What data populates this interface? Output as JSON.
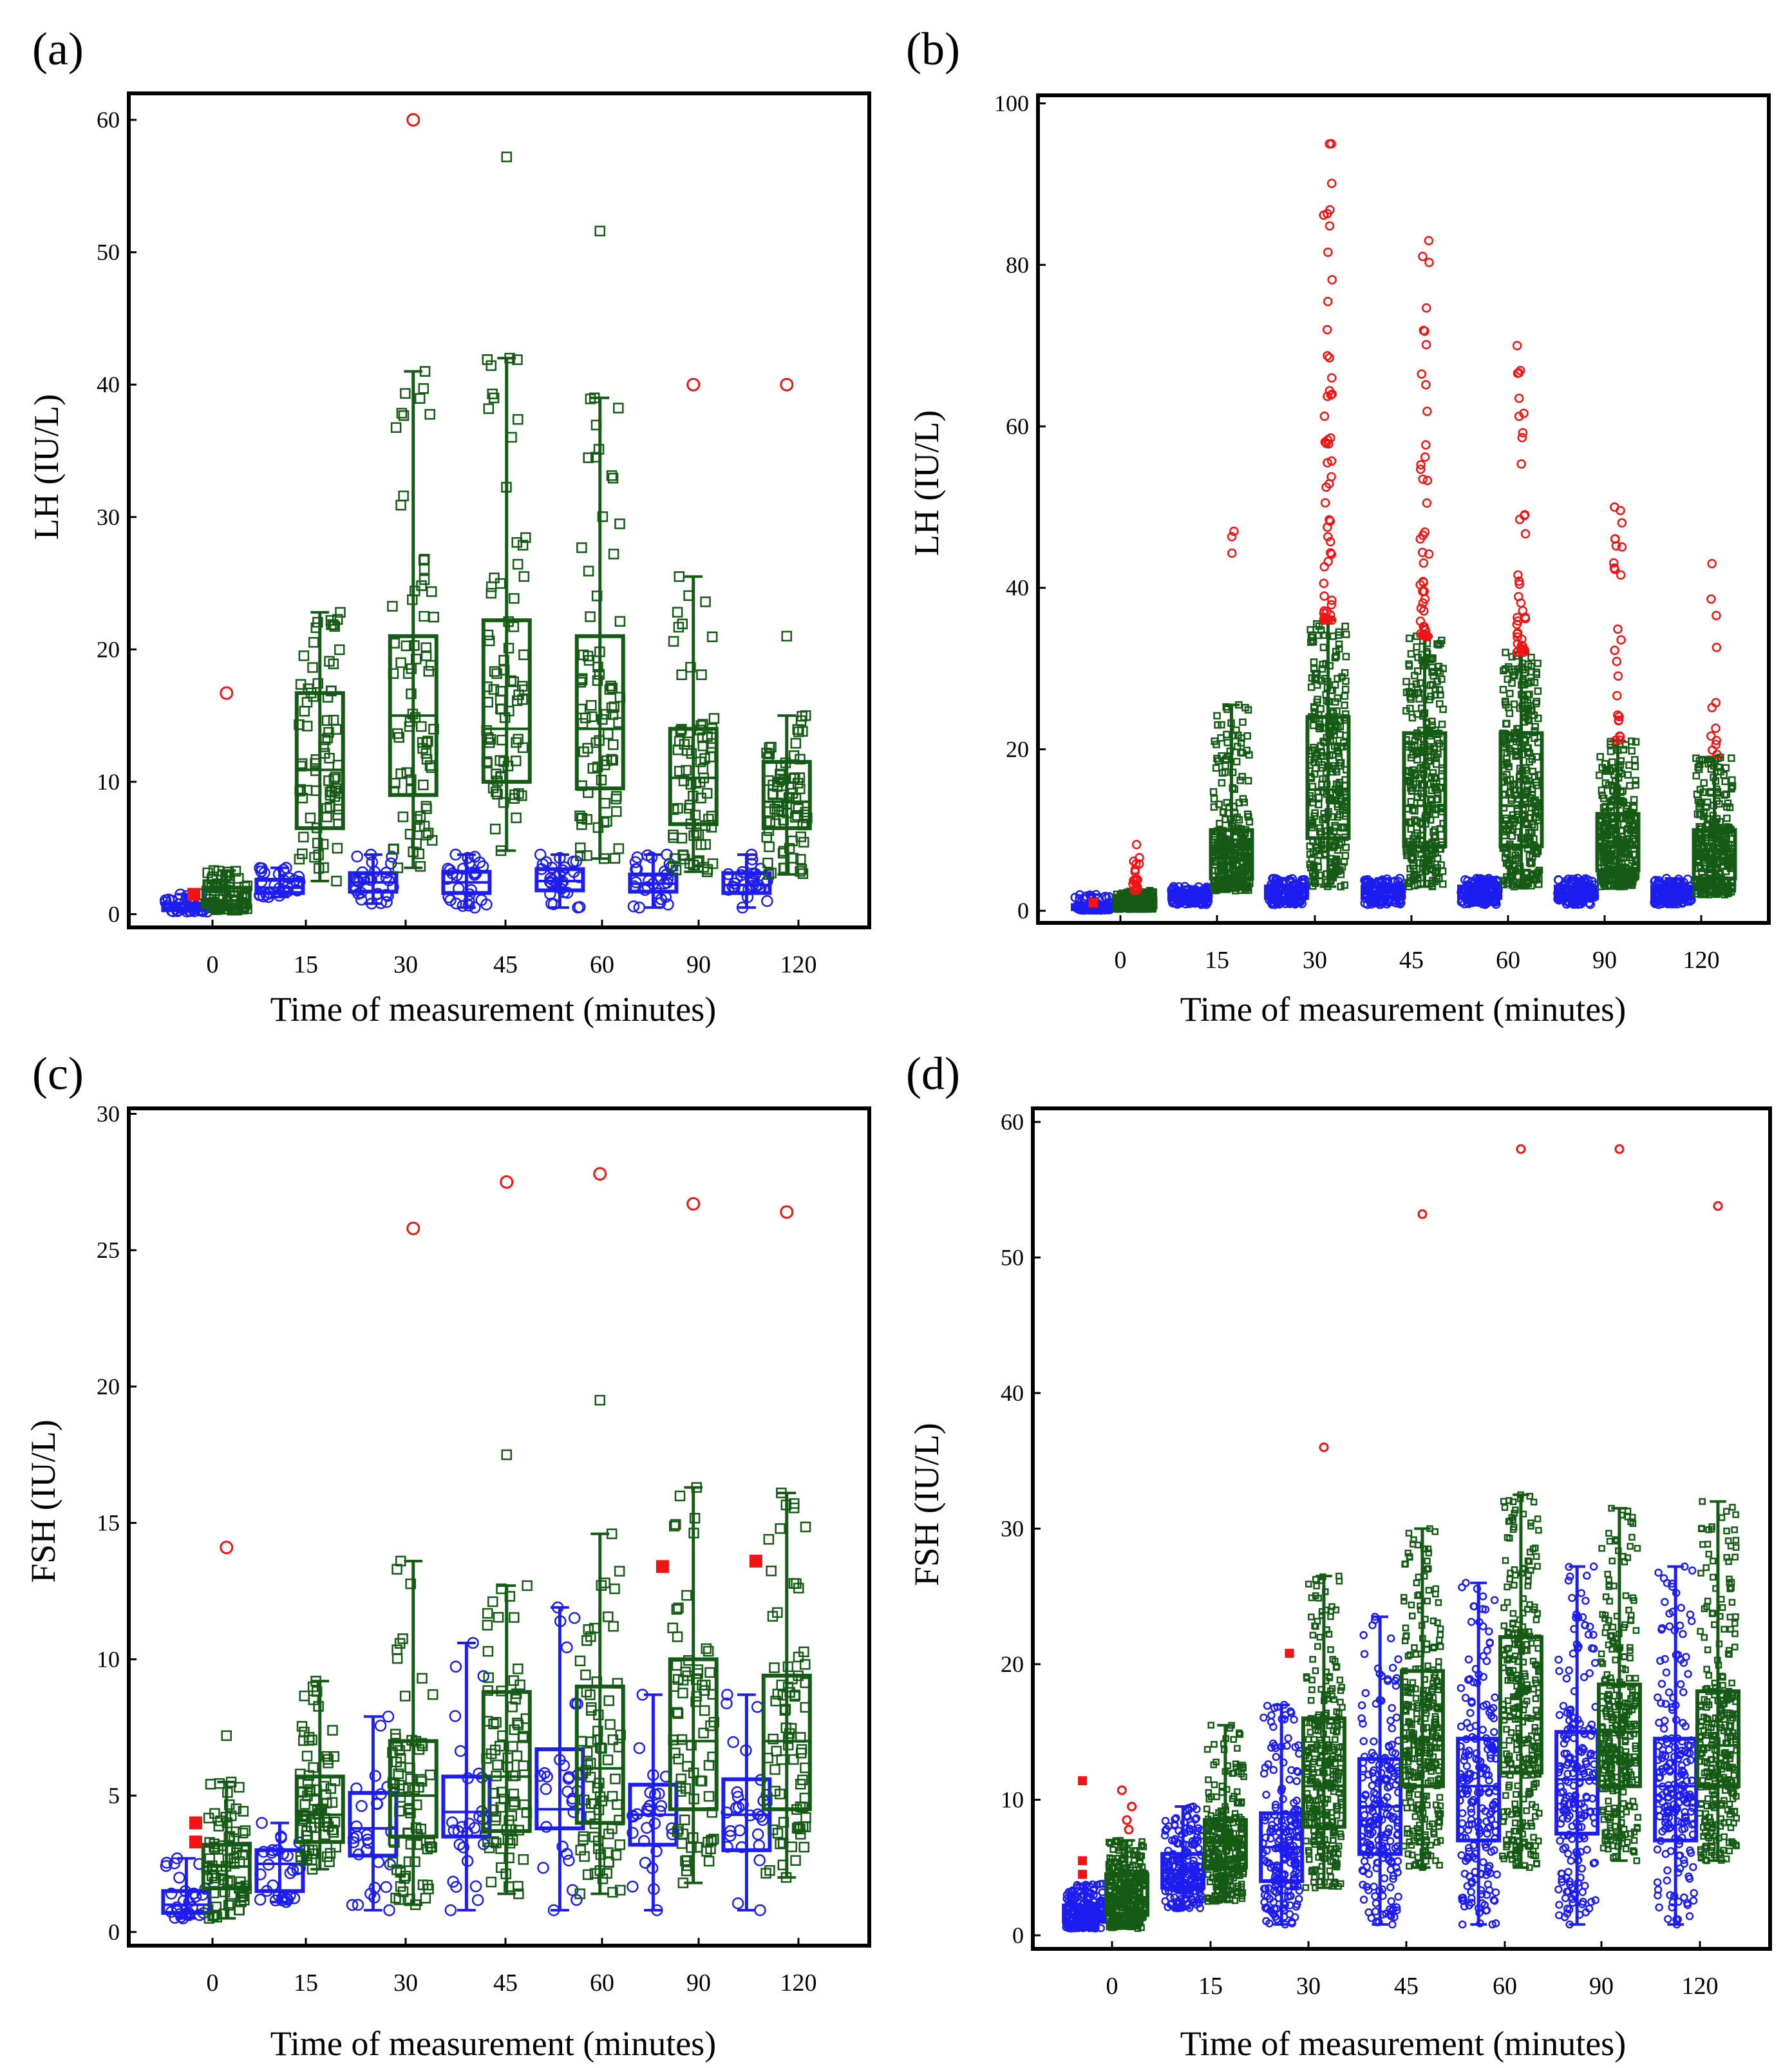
{
  "colors": {
    "blue": "#1d1df0",
    "green": "#155a15",
    "red": "#f01414",
    "frame": "#000000"
  },
  "chart_data": [
    {
      "type": "box-scatter",
      "panel_label": "(a)",
      "ylabel": "LH (IU/L)",
      "xlabel": "Time of measurement (minutes)",
      "categories": [
        "0",
        "15",
        "30",
        "45",
        "60",
        "90",
        "120"
      ],
      "ylim": [
        -1,
        62
      ],
      "yticks": [
        0,
        10,
        20,
        30,
        40,
        50,
        60
      ],
      "points_per_blue": 28,
      "points_per_green": 75,
      "series": [
        {
          "name": "group-blue",
          "color": "blue",
          "marker": "circle",
          "offset": -0.28,
          "box": [
            [
              0.2,
              0.3,
              0.5,
              0.8,
              1.5
            ],
            [
              1.3,
              1.6,
              2.0,
              2.6,
              3.5
            ],
            [
              0.8,
              1.7,
              2.4,
              3.1,
              4.5
            ],
            [
              0.5,
              1.6,
              2.4,
              3.2,
              4.5
            ],
            [
              0.5,
              1.8,
              2.5,
              3.4,
              4.5
            ],
            [
              0.5,
              1.7,
              2.3,
              3.0,
              4.5
            ],
            [
              0.5,
              1.6,
              2.2,
              3.1,
              4.5
            ]
          ]
        },
        {
          "name": "group-green",
          "color": "green",
          "marker": "square",
          "offset": 0.15,
          "box": [
            [
              0.3,
              0.5,
              1.0,
              2.0,
              3.3
            ],
            [
              2.5,
              6.5,
              10.9,
              16.7,
              22.8
            ],
            [
              3.5,
              9.0,
              15.0,
              21.0,
              41.0
            ],
            [
              4.8,
              10.0,
              14.0,
              22.2,
              42.0
            ],
            [
              4.2,
              9.5,
              14.0,
              21.0,
              39.0
            ],
            [
              3.2,
              6.8,
              10.3,
              14.0,
              25.5
            ],
            [
              3.0,
              6.5,
              8.5,
              11.5,
              15.0
            ]
          ],
          "extremes": [
            [],
            [],
            [],
            [
              57.2
            ],
            [
              51.6
            ],
            [],
            [
              21.0
            ]
          ]
        }
      ],
      "red_circles": [
        [
          0,
          16.7
        ],
        [
          2,
          60.0
        ],
        [
          5,
          40.0
        ],
        [
          6,
          40.0
        ]
      ],
      "red_squares": [
        [
          -0.2,
          1.5
        ]
      ]
    },
    {
      "type": "box-scatter",
      "panel_label": "(b)",
      "ylabel": "LH (IU/L)",
      "xlabel": "Time of measurement (minutes)",
      "categories": [
        "0",
        "15",
        "30",
        "45",
        "60",
        "90",
        "120"
      ],
      "ylim": [
        -1.5,
        101
      ],
      "yticks": [
        0,
        20,
        40,
        60,
        80,
        100
      ],
      "points_per_blue": 120,
      "points_per_green": 300,
      "series": [
        {
          "name": "group-blue",
          "color": "blue",
          "marker": "circle",
          "offset": -0.28,
          "box": [
            [
              0.1,
              0.2,
              0.4,
              0.7,
              2.0
            ],
            [
              0.8,
              1.4,
              1.8,
              2.3,
              3.0
            ],
            [
              0.8,
              1.6,
              2.3,
              3.0,
              4.0
            ],
            [
              0.8,
              1.6,
              2.3,
              3.0,
              4.0
            ],
            [
              0.8,
              1.6,
              2.3,
              3.0,
              4.0
            ],
            [
              0.8,
              1.6,
              2.3,
              3.0,
              4.0
            ],
            [
              0.8,
              1.6,
              2.3,
              3.0,
              4.0
            ]
          ]
        },
        {
          "name": "group-green",
          "color": "green",
          "marker": "square",
          "offset": 0.15,
          "box": [
            [
              0.2,
              0.4,
              0.8,
              1.5,
              2.5
            ],
            [
              2.5,
              4.0,
              6.5,
              10.0,
              25.5
            ],
            [
              3.0,
              9.0,
              15.0,
              24.0,
              36.0
            ],
            [
              3.0,
              8.0,
              13.0,
              22.0,
              34.0
            ],
            [
              3.0,
              8.0,
              13.0,
              22.0,
              32.0
            ],
            [
              3.0,
              5.0,
              8.0,
              12.0,
              21.0
            ],
            [
              2.0,
              4.0,
              6.5,
              10.0,
              19.0
            ]
          ]
        }
      ],
      "red_circles_spread": [
        [
          0,
          2.5,
          8.2,
          18
        ],
        [
          1,
          44.0,
          47.0,
          3
        ],
        [
          2,
          36.0,
          95.0,
          55
        ],
        [
          3,
          34.0,
          83.0,
          45
        ],
        [
          4,
          32.0,
          70.0,
          40
        ],
        [
          5,
          21.0,
          50.0,
          25
        ],
        [
          6,
          19.0,
          43.0,
          12
        ]
      ],
      "red_squares": [
        [
          -0.28,
          1.0
        ]
      ]
    },
    {
      "type": "box-scatter",
      "panel_label": "(c)",
      "ylabel": "FSH (IU/L)",
      "xlabel": "Time of measurement (minutes)",
      "categories": [
        "0",
        "15",
        "30",
        "45",
        "60",
        "90",
        "120"
      ],
      "ylim": [
        -0.5,
        30.2
      ],
      "yticks": [
        0,
        5,
        10,
        15,
        20,
        25,
        30
      ],
      "points_per_blue": 28,
      "points_per_green": 75,
      "series": [
        {
          "name": "group-blue",
          "color": "blue",
          "marker": "circle",
          "offset": -0.28,
          "box": [
            [
              0.5,
              0.7,
              1.0,
              1.5,
              2.7
            ],
            [
              1.1,
              1.5,
              2.5,
              3.0,
              4.0
            ],
            [
              0.8,
              2.8,
              3.8,
              5.1,
              7.9
            ],
            [
              0.8,
              3.5,
              4.4,
              5.7,
              10.6
            ],
            [
              0.8,
              3.8,
              4.5,
              6.7,
              11.9
            ],
            [
              0.8,
              3.2,
              4.3,
              5.4,
              8.7
            ],
            [
              0.8,
              3.0,
              4.3,
              5.6,
              8.7
            ]
          ]
        },
        {
          "name": "group-green",
          "color": "green",
          "marker": "square",
          "offset": 0.15,
          "box": [
            [
              0.5,
              1.6,
              2.4,
              3.2,
              5.5
            ],
            [
              2.3,
              3.3,
              4.3,
              5.7,
              9.2
            ],
            [
              1.0,
              3.5,
              5.0,
              7.0,
              13.6
            ],
            [
              1.4,
              3.7,
              5.7,
              8.8,
              12.7
            ],
            [
              1.4,
              4.0,
              6.0,
              9.0,
              14.6
            ],
            [
              1.8,
              4.5,
              7.0,
              10.0,
              16.3
            ],
            [
              2.0,
              4.5,
              7.0,
              9.4,
              16.1
            ]
          ],
          "extremes": [
            [
              7.2
            ],
            [],
            [],
            [
              17.5
            ],
            [
              19.5
            ],
            [],
            []
          ]
        }
      ],
      "red_circles": [
        [
          0,
          14.1
        ],
        [
          2,
          25.8
        ],
        [
          3,
          27.5
        ],
        [
          4,
          27.8
        ],
        [
          5,
          26.7
        ],
        [
          6,
          26.4
        ]
      ],
      "red_squares": [
        [
          -0.18,
          4.0
        ],
        [
          -0.18,
          3.3
        ],
        [
          4.82,
          13.4
        ],
        [
          5.82,
          13.6
        ]
      ]
    },
    {
      "type": "box-scatter",
      "panel_label": "(d)",
      "ylabel": "FSH (IU/L)",
      "xlabel": "Time of measurement (minutes)",
      "categories": [
        "0",
        "15",
        "30",
        "45",
        "60",
        "90",
        "120"
      ],
      "ylim": [
        -1,
        61
      ],
      "yticks": [
        0,
        10,
        20,
        30,
        40,
        50,
        60
      ],
      "points_per_blue": 200,
      "points_per_green": 300,
      "series": [
        {
          "name": "group-blue",
          "color": "blue",
          "marker": "circle",
          "offset": -0.28,
          "box": [
            [
              0.5,
              1.0,
              1.5,
              2.2,
              3.8
            ],
            [
              2.0,
              3.5,
              4.8,
              6.0,
              9.5
            ],
            [
              0.8,
              4.0,
              6.5,
              9.0,
              17.0
            ],
            [
              0.8,
              6.0,
              9.5,
              13.0,
              23.5
            ],
            [
              0.8,
              7.0,
              11.0,
              14.5,
              26.0
            ],
            [
              0.8,
              7.5,
              11.5,
              15.0,
              27.2
            ],
            [
              0.8,
              7.0,
              11.0,
              14.5,
              27.2
            ]
          ]
        },
        {
          "name": "group-green",
          "color": "green",
          "marker": "square",
          "offset": 0.15,
          "box": [
            [
              0.5,
              1.5,
              2.8,
              4.5,
              7.0
            ],
            [
              2.5,
              5.0,
              6.8,
              8.5,
              15.5
            ],
            [
              3.5,
              8.0,
              11.0,
              16.0,
              26.5
            ],
            [
              5.0,
              11.0,
              14.5,
              19.5,
              30.0
            ],
            [
              5.0,
              12.0,
              16.0,
              22.0,
              32.5
            ],
            [
              5.5,
              11.0,
              15.0,
              18.5,
              31.5
            ],
            [
              5.5,
              11.0,
              14.0,
              18.0,
              32.0
            ]
          ]
        }
      ],
      "red_circles": [
        [
          0.0,
          8.5
        ],
        [
          0.05,
          9.5
        ],
        [
          -0.05,
          10.7
        ],
        [
          0.02,
          7.8
        ],
        [
          2,
          36.0
        ],
        [
          3,
          53.2
        ],
        [
          4,
          58.0
        ],
        [
          5,
          58.0
        ],
        [
          6,
          53.8
        ]
      ],
      "red_squares": [
        [
          -0.3,
          11.4
        ],
        [
          -0.3,
          5.5
        ],
        [
          -0.3,
          4.5
        ],
        [
          1.8,
          20.8
        ]
      ]
    }
  ]
}
